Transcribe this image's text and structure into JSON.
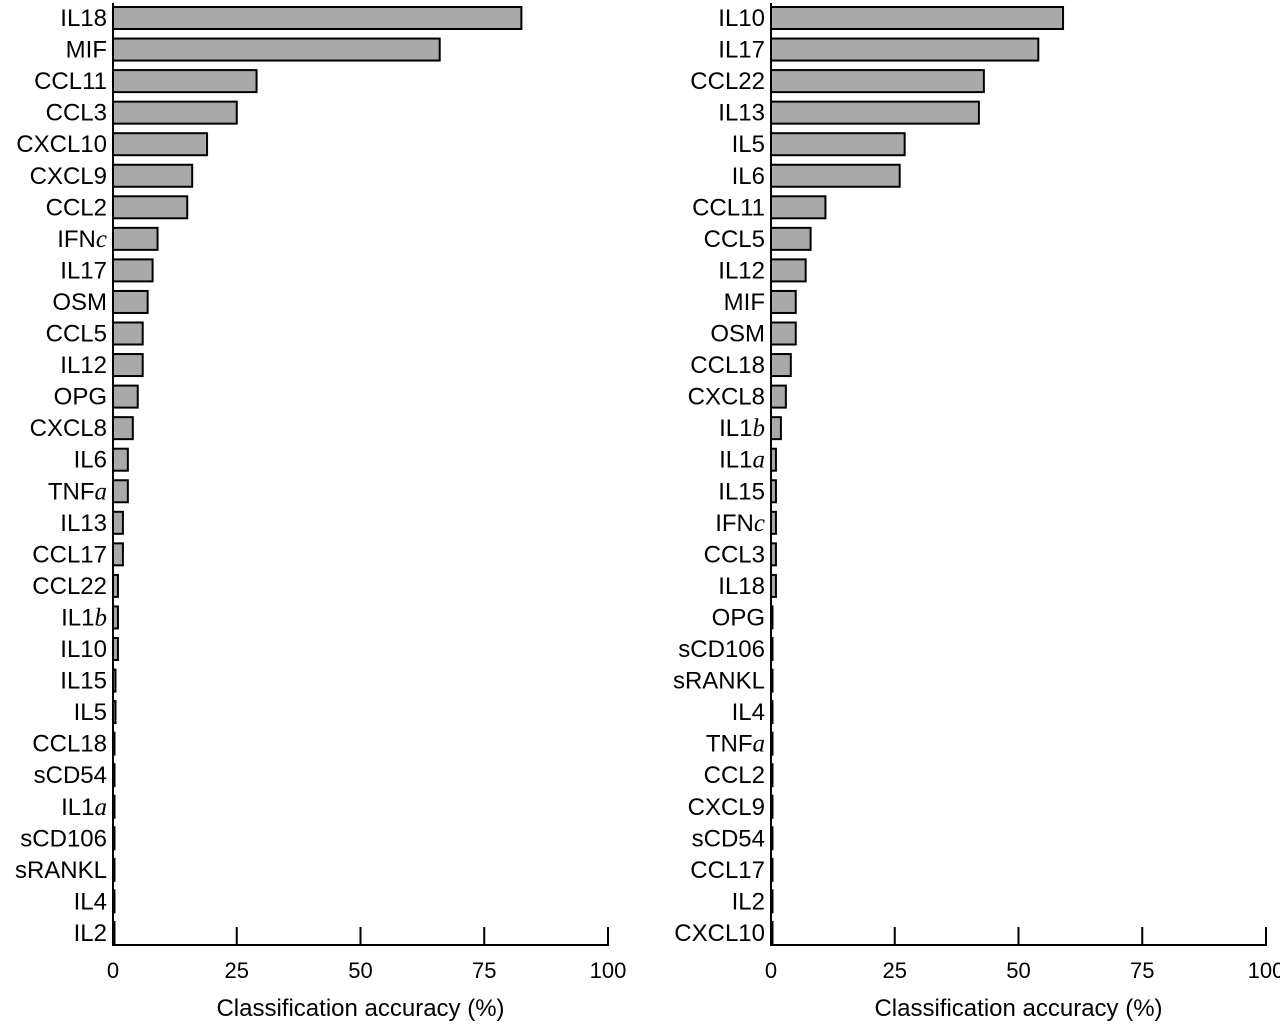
{
  "chart_data": [
    {
      "type": "bar",
      "orientation": "horizontal",
      "xlabel": "Classification accuracy (%)",
      "ylabel": "",
      "xlim": [
        0,
        100
      ],
      "xticks": [
        "0",
        "25",
        "50",
        "75",
        "100"
      ],
      "bar_color": "#a9a9a9",
      "categories": [
        {
          "name": "IL18",
          "greek": ""
        },
        {
          "name": "MIF",
          "greek": ""
        },
        {
          "name": "CCL11",
          "greek": ""
        },
        {
          "name": "CCL3",
          "greek": ""
        },
        {
          "name": "CXCL10",
          "greek": ""
        },
        {
          "name": "CXCL9",
          "greek": ""
        },
        {
          "name": "CCL2",
          "greek": ""
        },
        {
          "name": "IFN",
          "greek": "c"
        },
        {
          "name": "IL17",
          "greek": ""
        },
        {
          "name": "OSM",
          "greek": ""
        },
        {
          "name": "CCL5",
          "greek": ""
        },
        {
          "name": "IL12",
          "greek": ""
        },
        {
          "name": "OPG",
          "greek": ""
        },
        {
          "name": "CXCL8",
          "greek": ""
        },
        {
          "name": "IL6",
          "greek": ""
        },
        {
          "name": "TNF",
          "greek": "a"
        },
        {
          "name": "IL13",
          "greek": ""
        },
        {
          "name": "CCL17",
          "greek": ""
        },
        {
          "name": "CCL22",
          "greek": ""
        },
        {
          "name": "IL1",
          "greek": "b"
        },
        {
          "name": "IL10",
          "greek": ""
        },
        {
          "name": "IL15",
          "greek": ""
        },
        {
          "name": "IL5",
          "greek": ""
        },
        {
          "name": "CCL18",
          "greek": ""
        },
        {
          "name": "sCD54",
          "greek": ""
        },
        {
          "name": "IL1",
          "greek": "a"
        },
        {
          "name": "sCD106",
          "greek": ""
        },
        {
          "name": "sRANKL",
          "greek": ""
        },
        {
          "name": "IL4",
          "greek": ""
        },
        {
          "name": "IL2",
          "greek": ""
        }
      ],
      "values": [
        82.5,
        66,
        29,
        25,
        19,
        16,
        15,
        9,
        8,
        7,
        6,
        6,
        5,
        4,
        3,
        3,
        2,
        2,
        1,
        1,
        1,
        0.5,
        0.5,
        0.3,
        0.3,
        0.3,
        0.3,
        0.3,
        0.3,
        0.3
      ]
    },
    {
      "type": "bar",
      "orientation": "horizontal",
      "xlabel": "Classification accuracy (%)",
      "ylabel": "",
      "xlim": [
        0,
        100
      ],
      "xticks": [
        "0",
        "25",
        "50",
        "75",
        "100"
      ],
      "bar_color": "#a9a9a9",
      "categories": [
        {
          "name": "IL10",
          "greek": ""
        },
        {
          "name": "IL17",
          "greek": ""
        },
        {
          "name": "CCL22",
          "greek": ""
        },
        {
          "name": "IL13",
          "greek": ""
        },
        {
          "name": "IL5",
          "greek": ""
        },
        {
          "name": "IL6",
          "greek": ""
        },
        {
          "name": "CCL11",
          "greek": ""
        },
        {
          "name": "CCL5",
          "greek": ""
        },
        {
          "name": "IL12",
          "greek": ""
        },
        {
          "name": "MIF",
          "greek": ""
        },
        {
          "name": "OSM",
          "greek": ""
        },
        {
          "name": "CCL18",
          "greek": ""
        },
        {
          "name": "CXCL8",
          "greek": ""
        },
        {
          "name": "IL1",
          "greek": "b"
        },
        {
          "name": "IL1",
          "greek": "a"
        },
        {
          "name": "IL15",
          "greek": ""
        },
        {
          "name": "IFN",
          "greek": "c"
        },
        {
          "name": "CCL3",
          "greek": ""
        },
        {
          "name": "IL18",
          "greek": ""
        },
        {
          "name": "OPG",
          "greek": ""
        },
        {
          "name": "sCD106",
          "greek": ""
        },
        {
          "name": "sRANKL",
          "greek": ""
        },
        {
          "name": "IL4",
          "greek": ""
        },
        {
          "name": "TNF",
          "greek": "a"
        },
        {
          "name": "CCL2",
          "greek": ""
        },
        {
          "name": "CXCL9",
          "greek": ""
        },
        {
          "name": "sCD54",
          "greek": ""
        },
        {
          "name": "CCL17",
          "greek": ""
        },
        {
          "name": "IL2",
          "greek": ""
        },
        {
          "name": "CXCL10",
          "greek": ""
        }
      ],
      "values": [
        59,
        54,
        43,
        42,
        27,
        26,
        11,
        8,
        7,
        5,
        5,
        4,
        3,
        2,
        1,
        1,
        1,
        1,
        1,
        0.3,
        0.3,
        0.3,
        0.3,
        0.3,
        0.3,
        0.3,
        0.3,
        0.3,
        0.3,
        0.3
      ]
    }
  ]
}
